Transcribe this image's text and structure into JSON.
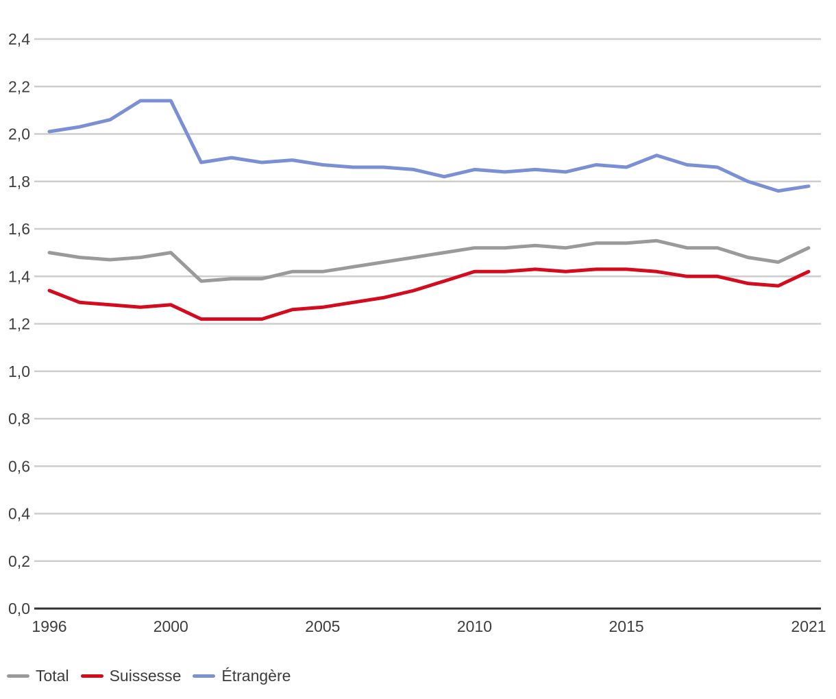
{
  "chart_data": {
    "type": "line",
    "x": [
      1996,
      1997,
      1998,
      1999,
      2000,
      2001,
      2002,
      2003,
      2004,
      2005,
      2006,
      2007,
      2008,
      2009,
      2010,
      2011,
      2012,
      2013,
      2014,
      2015,
      2016,
      2017,
      2018,
      2019,
      2020,
      2021
    ],
    "series": [
      {
        "name": "Total",
        "color": "#9a9a9a",
        "values": [
          1.5,
          1.48,
          1.47,
          1.48,
          1.5,
          1.38,
          1.39,
          1.39,
          1.42,
          1.42,
          1.44,
          1.46,
          1.48,
          1.5,
          1.52,
          1.52,
          1.53,
          1.52,
          1.54,
          1.54,
          1.55,
          1.52,
          1.52,
          1.48,
          1.46,
          1.52
        ]
      },
      {
        "name": "Suissesse",
        "color": "#d40a1e",
        "values": [
          1.34,
          1.29,
          1.28,
          1.27,
          1.28,
          1.22,
          1.22,
          1.22,
          1.26,
          1.27,
          1.29,
          1.31,
          1.34,
          1.38,
          1.42,
          1.42,
          1.43,
          1.42,
          1.43,
          1.43,
          1.42,
          1.4,
          1.4,
          1.37,
          1.36,
          1.42
        ]
      },
      {
        "name": "Étrangère",
        "color": "#7b8fd4",
        "values": [
          2.01,
          2.03,
          2.06,
          2.14,
          2.14,
          1.88,
          1.9,
          1.88,
          1.89,
          1.87,
          1.86,
          1.86,
          1.85,
          1.82,
          1.85,
          1.84,
          1.85,
          1.84,
          1.87,
          1.86,
          1.91,
          1.87,
          1.86,
          1.8,
          1.76,
          1.78
        ]
      }
    ],
    "xlim": [
      1996,
      2021
    ],
    "ylim": [
      0.0,
      2.4
    ],
    "grid": true,
    "legend_position": "bottom-left",
    "y_ticks": [
      {
        "v": 0.0,
        "label": "0,0"
      },
      {
        "v": 0.2,
        "label": "0,2"
      },
      {
        "v": 0.4,
        "label": "0,4"
      },
      {
        "v": 0.6,
        "label": "0,6"
      },
      {
        "v": 0.8,
        "label": "0,8"
      },
      {
        "v": 1.0,
        "label": "1,0"
      },
      {
        "v": 1.2,
        "label": "1,2"
      },
      {
        "v": 1.4,
        "label": "1,4"
      },
      {
        "v": 1.6,
        "label": "1,6"
      },
      {
        "v": 1.8,
        "label": "1,8"
      },
      {
        "v": 2.0,
        "label": "2,0"
      },
      {
        "v": 2.2,
        "label": "2,2"
      },
      {
        "v": 2.4,
        "label": "2,4"
      }
    ],
    "x_ticks": [
      {
        "v": 1996,
        "label": "1996"
      },
      {
        "v": 2000,
        "label": "2000"
      },
      {
        "v": 2005,
        "label": "2005"
      },
      {
        "v": 2010,
        "label": "2010"
      },
      {
        "v": 2015,
        "label": "2015"
      },
      {
        "v": 2021,
        "label": "2021"
      }
    ],
    "colors": {
      "gridline": "#cdcdcd",
      "axis": "#333333",
      "tick_text": "#3d3d3d"
    }
  }
}
